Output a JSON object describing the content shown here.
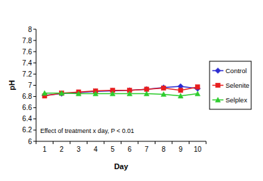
{
  "chart_data": {
    "type": "line",
    "x_label": "Day",
    "y_label": "pH",
    "annotation": "Effect of treatment x day, P < 0.01",
    "categories": [
      "1",
      "2",
      "3",
      "4",
      "5",
      "6",
      "7",
      "8",
      "9",
      "10"
    ],
    "series": [
      {
        "name": "Control",
        "color": "#2b2bd0",
        "marker": "diamond",
        "values": [
          6.82,
          6.85,
          6.87,
          6.89,
          6.9,
          6.91,
          6.93,
          6.96,
          6.98,
          6.94
        ]
      },
      {
        "name": "Selenite",
        "color": "#e81e1e",
        "marker": "square",
        "values": [
          6.81,
          6.86,
          6.88,
          6.9,
          6.91,
          6.91,
          6.93,
          6.95,
          6.91,
          6.97
        ]
      },
      {
        "name": "Selplex",
        "color": "#2ecc2e",
        "marker": "triangle",
        "values": [
          6.86,
          6.86,
          6.85,
          6.85,
          6.85,
          6.85,
          6.85,
          6.84,
          6.81,
          6.85
        ]
      }
    ],
    "ylim": [
      6,
      8
    ],
    "yticks": [
      6,
      6.2,
      6.4,
      6.6,
      6.8,
      7,
      7.2,
      7.4,
      7.6,
      7.8,
      8
    ],
    "grid": false,
    "legend": "right"
  }
}
